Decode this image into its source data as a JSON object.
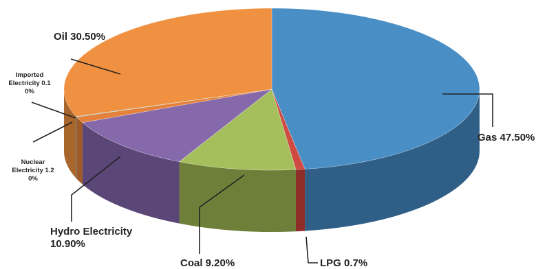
{
  "chart_data": {
    "type": "pie",
    "style": "3d",
    "slices": [
      {
        "key": "gas",
        "label_lines": [
          "Gas 47.50%"
        ],
        "value": 47.5,
        "color": "#4a8ec6",
        "side_color": "#2f5e86"
      },
      {
        "key": "lpg",
        "label_lines": [
          "LPG 0.7%"
        ],
        "value": 0.7,
        "color": "#cf4a40",
        "side_color": "#8f2e28"
      },
      {
        "key": "coal",
        "label_lines": [
          "Coal 9.20%"
        ],
        "value": 9.2,
        "color": "#a6bf5d",
        "side_color": "#6e7f3a"
      },
      {
        "key": "hydro",
        "label_lines": [
          "Hydro Electricity",
          "10.90%"
        ],
        "value": 10.9,
        "color": "#8569aa",
        "side_color": "#5a4677"
      },
      {
        "key": "nuclear",
        "label_lines": [
          "Nuclear",
          "Electricity 1.2",
          "0%"
        ],
        "value": 1.2,
        "color": "#e4813a",
        "side_color": "#9f5a28"
      },
      {
        "key": "imported",
        "label_lines": [
          "Imported",
          "Electricity 0.1",
          "0%"
        ],
        "value": 0.1,
        "color": "#3fa9c4",
        "side_color": "#2a7488"
      },
      {
        "key": "oil",
        "label_lines": [
          "Oil 30.50%"
        ],
        "value": 30.5,
        "color": "#ef9140",
        "side_color": "#a8652c"
      }
    ]
  }
}
